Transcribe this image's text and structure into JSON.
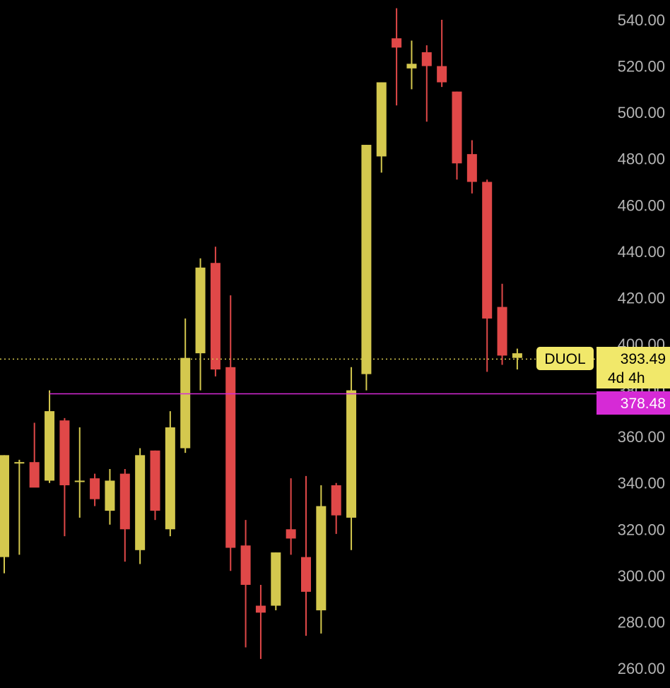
{
  "colors": {
    "background": "#000000",
    "up": "#d4c84e",
    "down": "#e04848",
    "axis_text": "#b5b5b5",
    "price_line": "#d4c84e",
    "level_line": "#d62ad6"
  },
  "labels": {
    "ticker": "DUOL",
    "last_price": "393.49",
    "countdown": "4d 4h",
    "level_price": "378.48"
  },
  "chart_data": {
    "type": "candlestick",
    "ylim": [
      260,
      540
    ],
    "y_ticks": [
      "260.00",
      "280.00",
      "300.00",
      "320.00",
      "340.00",
      "360.00",
      "380.00",
      "400.00",
      "420.00",
      "440.00",
      "460.00",
      "480.00",
      "500.00",
      "520.00",
      "540.00"
    ],
    "grid": false,
    "last_price": 393.49,
    "level": 378.48,
    "candles": [
      {
        "o": 308,
        "h": 352,
        "l": 301,
        "c": 352
      },
      {
        "o": 349,
        "h": 350,
        "l": 309,
        "c": 349
      },
      {
        "o": 349,
        "h": 366,
        "l": 340,
        "c": 338
      },
      {
        "o": 341,
        "h": 380,
        "l": 340,
        "c": 371
      },
      {
        "o": 367,
        "h": 368,
        "l": 317,
        "c": 339
      },
      {
        "o": 341,
        "h": 364,
        "l": 325,
        "c": 341
      },
      {
        "o": 342,
        "h": 344,
        "l": 330,
        "c": 333
      },
      {
        "o": 328,
        "h": 346,
        "l": 322,
        "c": 341
      },
      {
        "o": 344,
        "h": 346,
        "l": 306,
        "c": 320
      },
      {
        "o": 311,
        "h": 355,
        "l": 305,
        "c": 352
      },
      {
        "o": 354,
        "h": 354,
        "l": 324,
        "c": 328
      },
      {
        "o": 320,
        "h": 371,
        "l": 317,
        "c": 364
      },
      {
        "o": 355,
        "h": 411,
        "l": 353,
        "c": 394
      },
      {
        "o": 396,
        "h": 437,
        "l": 380,
        "c": 433
      },
      {
        "o": 435,
        "h": 442,
        "l": 386,
        "c": 389
      },
      {
        "o": 390,
        "h": 421,
        "l": 302,
        "c": 312
      },
      {
        "o": 313,
        "h": 324,
        "l": 269,
        "c": 296
      },
      {
        "o": 287,
        "h": 296,
        "l": 264,
        "c": 284
      },
      {
        "o": 287,
        "h": 310,
        "l": 285,
        "c": 310
      },
      {
        "o": 320,
        "h": 342,
        "l": 309,
        "c": 316
      },
      {
        "o": 308,
        "h": 343,
        "l": 274,
        "c": 293
      },
      {
        "o": 285,
        "h": 339,
        "l": 275,
        "c": 330
      },
      {
        "o": 339,
        "h": 340,
        "l": 318,
        "c": 326
      },
      {
        "o": 325,
        "h": 390,
        "l": 311,
        "c": 380
      },
      {
        "o": 387,
        "h": 486,
        "l": 380,
        "c": 486
      },
      {
        "o": 481,
        "h": 513,
        "l": 474,
        "c": 513
      },
      {
        "o": 532,
        "h": 545,
        "l": 503,
        "c": 528
      },
      {
        "o": 519,
        "h": 531,
        "l": 510,
        "c": 521
      },
      {
        "o": 526,
        "h": 529,
        "l": 496,
        "c": 520
      },
      {
        "o": 520,
        "h": 540,
        "l": 511,
        "c": 513
      },
      {
        "o": 509,
        "h": 509,
        "l": 471,
        "c": 478
      },
      {
        "o": 482,
        "h": 488,
        "l": 465,
        "c": 470
      },
      {
        "o": 470,
        "h": 471,
        "l": 388,
        "c": 411
      },
      {
        "o": 416,
        "h": 426,
        "l": 391,
        "c": 395
      },
      {
        "o": 394,
        "h": 398,
        "l": 389,
        "c": 396
      }
    ]
  }
}
